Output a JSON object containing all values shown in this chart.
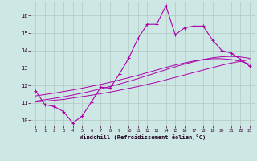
{
  "xlabel": "Windchill (Refroidissement éolien,°C)",
  "bg_color": "#cde8e4",
  "grid_color": "#b0c8c4",
  "line_color": "#aa00aa",
  "xlim": [
    -0.5,
    23.5
  ],
  "ylim": [
    9.7,
    16.8
  ],
  "xticks": [
    0,
    1,
    2,
    3,
    4,
    5,
    6,
    7,
    8,
    9,
    10,
    11,
    12,
    13,
    14,
    15,
    16,
    17,
    18,
    19,
    20,
    21,
    22,
    23
  ],
  "yticks": [
    10,
    11,
    12,
    13,
    14,
    15,
    16
  ],
  "hours": [
    0,
    1,
    2,
    3,
    4,
    5,
    6,
    7,
    8,
    9,
    10,
    11,
    12,
    13,
    14,
    15,
    16,
    17,
    18,
    19,
    20,
    21,
    22,
    23
  ],
  "data_line": [
    11.7,
    10.9,
    10.8,
    10.5,
    9.85,
    10.25,
    11.05,
    11.9,
    11.85,
    12.65,
    13.55,
    14.7,
    15.5,
    15.5,
    16.55,
    14.9,
    15.3,
    15.4,
    15.4,
    14.6,
    14.0,
    13.85,
    13.5,
    13.1
  ],
  "trend_line1": [
    11.05,
    11.1,
    11.15,
    11.2,
    11.28,
    11.36,
    11.44,
    11.53,
    11.62,
    11.72,
    11.83,
    11.94,
    12.06,
    12.18,
    12.32,
    12.46,
    12.6,
    12.74,
    12.88,
    13.02,
    13.16,
    13.28,
    13.38,
    13.48
  ],
  "trend_line2": [
    11.1,
    11.18,
    11.26,
    11.35,
    11.45,
    11.56,
    11.68,
    11.81,
    11.94,
    12.08,
    12.23,
    12.39,
    12.56,
    12.73,
    12.9,
    13.07,
    13.22,
    13.36,
    13.48,
    13.58,
    13.64,
    13.66,
    13.63,
    13.55
  ],
  "trend_line3": [
    11.4,
    11.48,
    11.56,
    11.65,
    11.74,
    11.84,
    11.95,
    12.06,
    12.18,
    12.31,
    12.44,
    12.58,
    12.73,
    12.88,
    13.03,
    13.17,
    13.29,
    13.4,
    13.48,
    13.53,
    13.53,
    13.48,
    13.38,
    13.22
  ]
}
